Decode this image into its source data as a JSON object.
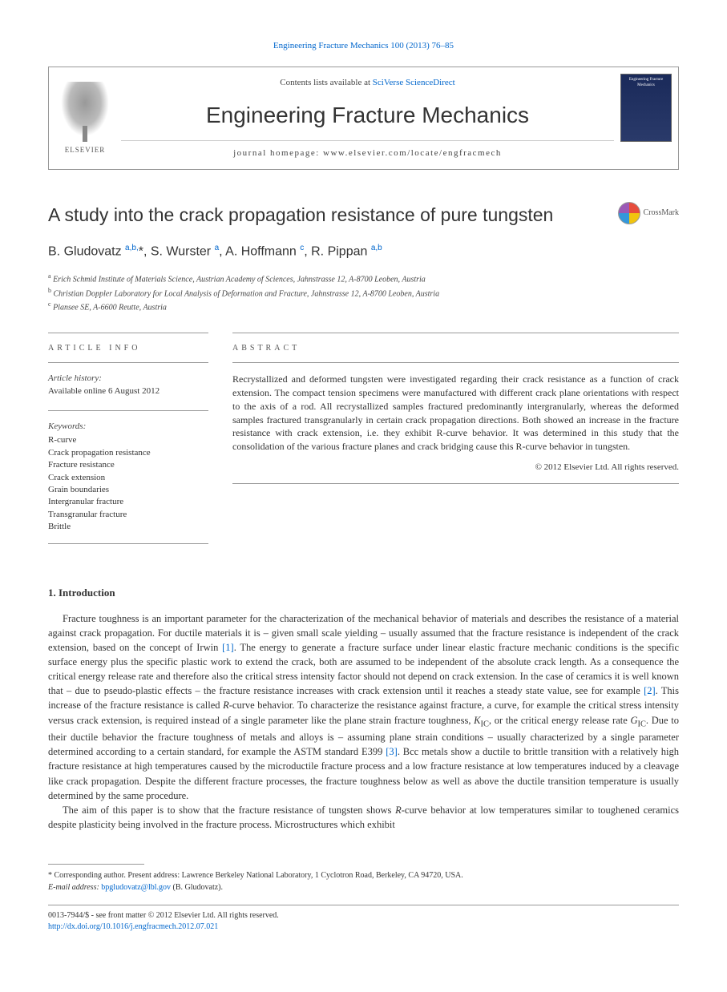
{
  "citation": "Engineering Fracture Mechanics 100 (2013) 76–85",
  "header": {
    "contents_prefix": "Contents lists available at ",
    "contents_link": "SciVerse ScienceDirect",
    "journal": "Engineering Fracture Mechanics",
    "homepage_prefix": "journal homepage: ",
    "homepage_url": "www.elsevier.com/locate/engfracmech",
    "publisher": "ELSEVIER",
    "cover_text": "Engineering Fracture Mechanics"
  },
  "title": "A study into the crack propagation resistance of pure tungsten",
  "crossmark": "CrossMark",
  "authors_html": "B. Gludovatz <sup>a,b,</sup><span class='star'>*</span>, S. Wurster <sup>a</sup>, A. Hoffmann <sup>c</sup>, R. Pippan <sup>a,b</sup>",
  "affiliations": [
    {
      "sup": "a",
      "text": "Erich Schmid Institute of Materials Science, Austrian Academy of Sciences, Jahnstrasse 12, A-8700 Leoben, Austria"
    },
    {
      "sup": "b",
      "text": "Christian Doppler Laboratory for Local Analysis of Deformation and Fracture, Jahnstrasse 12, A-8700 Leoben, Austria"
    },
    {
      "sup": "c",
      "text": "Plansee SE, A-6600 Reutte, Austria"
    }
  ],
  "info": {
    "label": "ARTICLE INFO",
    "history_label": "Article history:",
    "history_value": "Available online 6 August 2012",
    "keywords_label": "Keywords:",
    "keywords": [
      "R-curve",
      "Crack propagation resistance",
      "Fracture resistance",
      "Crack extension",
      "Grain boundaries",
      "Intergranular fracture",
      "Transgranular fracture",
      "Brittle"
    ]
  },
  "abstract": {
    "label": "ABSTRACT",
    "text": "Recrystallized and deformed tungsten were investigated regarding their crack resistance as a function of crack extension. The compact tension specimens were manufactured with different crack plane orientations with respect to the axis of a rod. All recrystallized samples fractured predominantly intergranularly, whereas the deformed samples fractured transgranularly in certain crack propagation directions. Both showed an increase in the fracture resistance with crack extension, i.e. they exhibit R-curve behavior. It was determined in this study that the consolidation of the various fracture planes and crack bridging cause this R-curve behavior in tungsten.",
    "copyright": "© 2012 Elsevier Ltd. All rights reserved."
  },
  "sections": {
    "intro_heading": "1. Introduction",
    "intro_p1": "Fracture toughness is an important parameter for the characterization of the mechanical behavior of materials and describes the resistance of a material against crack propagation. For ductile materials it is – given small scale yielding – usually assumed that the fracture resistance is independent of the crack extension, based on the concept of Irwin [1]. The energy to generate a fracture surface under linear elastic fracture mechanic conditions is the specific surface energy plus the specific plastic work to extend the crack, both are assumed to be independent of the absolute crack length. As a consequence the critical energy release rate and therefore also the critical stress intensity factor should not depend on crack extension. In the case of ceramics it is well known that – due to pseudo-plastic effects – the fracture resistance increases with crack extension until it reaches a steady state value, see for example [2]. This increase of the fracture resistance is called R-curve behavior. To characterize the resistance against fracture, a curve, for example the critical stress intensity versus crack extension, is required instead of a single parameter like the plane strain fracture toughness, KIC, or the critical energy release rate GIC. Due to their ductile behavior the fracture toughness of metals and alloys is – assuming plane strain conditions – usually characterized by a single parameter determined according to a certain standard, for example the ASTM standard E399 [3]. Bcc metals show a ductile to brittle transition with a relatively high fracture resistance at high temperatures caused by the microductile fracture process and a low fracture resistance at low temperatures induced by a cleavage like crack propagation. Despite the different fracture processes, the fracture toughness below as well as above the ductile transition temperature is usually determined by the same procedure.",
    "intro_p2": "The aim of this paper is to show that the fracture resistance of tungsten shows R-curve behavior at low temperatures similar to toughened ceramics despite plasticity being involved in the fracture process. Microstructures which exhibit"
  },
  "footnote": {
    "corresponding": "* Corresponding author. Present address: Lawrence Berkeley National Laboratory, 1 Cyclotron Road, Berkeley, CA 94720, USA.",
    "email_label": "E-mail address: ",
    "email": "bpgludovatz@lbl.gov",
    "email_name": " (B. Gludovatz)."
  },
  "footer": {
    "line1": "0013-7944/$ - see front matter © 2012 Elsevier Ltd. All rights reserved.",
    "doi": "http://dx.doi.org/10.1016/j.engfracmech.2012.07.021"
  },
  "colors": {
    "link": "#0066cc",
    "text": "#333333",
    "border": "#999999"
  }
}
